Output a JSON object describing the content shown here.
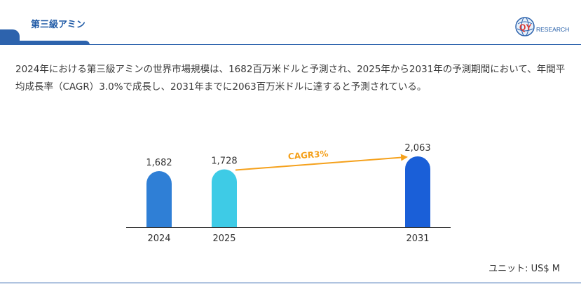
{
  "header": {
    "title": "第三級アミン",
    "logo_text_1": "QY",
    "logo_text_2": "RESEARCH"
  },
  "summary_text": "2024年における第三級アミンの世界市場規模は、1682百万米ドルと予測され、2025年から2031年の予測期間において、年間平均成長率（CAGR）3.0%で成長し、2031年までに2063百万米ドルに達すると予測されている。",
  "unit_label": "ユニット: US$ M",
  "chart_data": {
    "type": "bar",
    "categories": [
      "2024",
      "2025",
      "2031"
    ],
    "values": [
      1682,
      1728,
      2063
    ],
    "value_labels": [
      "1,682",
      "1,728",
      "2,063"
    ],
    "colors": [
      "#2f7fd6",
      "#3ecbe6",
      "#1a5fd8"
    ],
    "annotation": {
      "text": "CAGR3%",
      "from": "2025",
      "to": "2031",
      "color": "#f5a11c"
    },
    "title": "",
    "xlabel": "",
    "ylabel": "",
    "grid": false,
    "legend": false
  },
  "colors": {
    "accent": "#2d63ad",
    "title": "#1f5aa6"
  }
}
